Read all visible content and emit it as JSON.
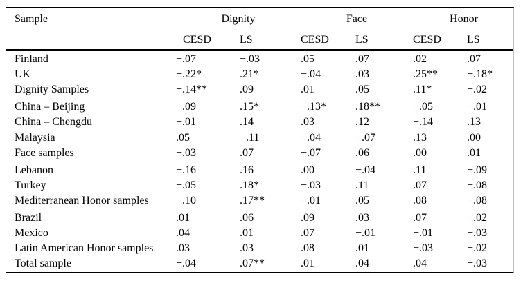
{
  "table": {
    "row_header_label": "Sample",
    "groups": [
      {
        "label": "Dignity"
      },
      {
        "label": "Face"
      },
      {
        "label": "Honor"
      }
    ],
    "sub_columns": [
      "CESD",
      "LS",
      "CESD",
      "LS",
      "CESD",
      "LS"
    ],
    "rows": [
      {
        "label": "Finland",
        "values": [
          "−.07",
          "−.03",
          ".05",
          ".07",
          ".02",
          ".07"
        ],
        "group_start": false
      },
      {
        "label": "UK",
        "values": [
          "−.22*",
          ".21*",
          "−.04",
          ".03",
          ".25**",
          "−.18*"
        ],
        "group_start": false
      },
      {
        "label": "Dignity Samples",
        "values": [
          "−.14**",
          ".09",
          ".01",
          ".05",
          ".11*",
          "−.02"
        ],
        "group_start": false
      },
      {
        "label": "China – Beijing",
        "values": [
          "−.09",
          ".15*",
          "−.13*",
          ".18**",
          "−.05",
          "−.01"
        ],
        "group_start": true
      },
      {
        "label": "China – Chengdu",
        "values": [
          "−.01",
          ".14",
          ".03",
          ".12",
          "−.14",
          ".13"
        ],
        "group_start": false
      },
      {
        "label": "Malaysia",
        "values": [
          ".05",
          "−.11",
          "−.04",
          "−.07",
          ".13",
          ".00"
        ],
        "group_start": false
      },
      {
        "label": "Face samples",
        "values": [
          "−.03",
          ".07",
          "−.07",
          ".06",
          ".00",
          ".01"
        ],
        "group_start": false
      },
      {
        "label": "Lebanon",
        "values": [
          "−.16",
          ".16",
          ".00",
          "−.04",
          ".11",
          "−.09"
        ],
        "group_start": true
      },
      {
        "label": "Turkey",
        "values": [
          "−.05",
          ".18*",
          "−.03",
          ".11",
          ".07",
          "−.08"
        ],
        "group_start": false
      },
      {
        "label": "Mediterranean Honor samples",
        "values": [
          "−.10",
          ".17**",
          "−.01",
          ".05",
          ".08",
          "−.08"
        ],
        "group_start": false
      },
      {
        "label": "Brazil",
        "values": [
          ".01",
          ".06",
          ".09",
          ".03",
          ".07",
          "−.02"
        ],
        "group_start": true
      },
      {
        "label": "Mexico",
        "values": [
          ".04",
          ".01",
          ".07",
          "−.01",
          "−.01",
          "−.03"
        ],
        "group_start": false
      },
      {
        "label": "Latin American Honor samples",
        "values": [
          ".03",
          ".03",
          ".08",
          ".01",
          "−.03",
          "−.02"
        ],
        "group_start": false
      },
      {
        "label": "Total sample",
        "values": [
          "−.04",
          ".07**",
          ".01",
          ".04",
          ".04",
          "−.03"
        ],
        "group_start": false
      }
    ]
  }
}
